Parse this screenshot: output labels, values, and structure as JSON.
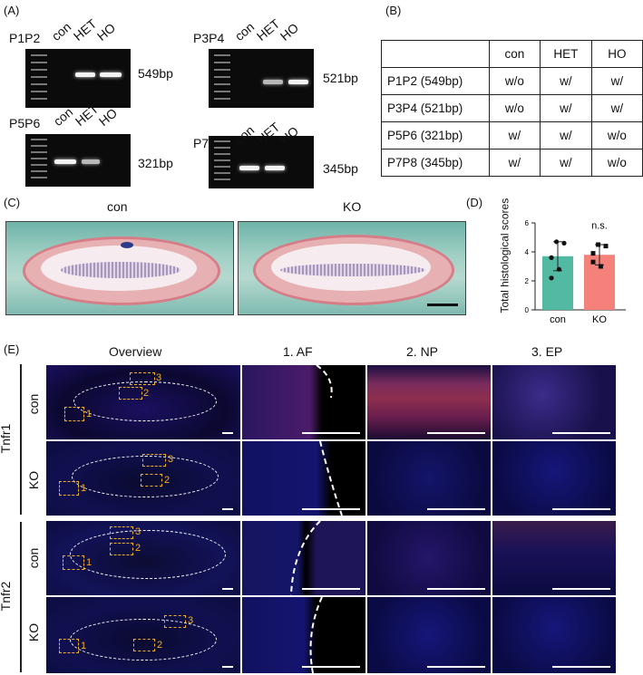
{
  "panelA": {
    "label": "(A)",
    "gels": [
      {
        "name": "P1P2",
        "lanes": [
          "con",
          "HET",
          "HO"
        ],
        "size": "549bp"
      },
      {
        "name": "P3P4",
        "lanes": [
          "con",
          "HET",
          "HO"
        ],
        "size": "521bp"
      },
      {
        "name": "P5P6",
        "lanes": [
          "con",
          "HET",
          "HO"
        ],
        "size": "321bp"
      },
      {
        "name": "P7P8",
        "lanes": [
          "con",
          "HET",
          "HO"
        ],
        "size": "345bp"
      }
    ]
  },
  "panelB": {
    "label": "(B)",
    "headers": [
      "",
      "con",
      "HET",
      "HO"
    ],
    "rows": [
      [
        "P1P2 (549bp)",
        "w/o",
        "w/",
        "w/"
      ],
      [
        "P3P4 (521bp)",
        "w/o",
        "w/",
        "w/"
      ],
      [
        "P5P6 (321bp)",
        "w/",
        "w/",
        "w/o"
      ],
      [
        "P7P8 (345bp)",
        "w/",
        "w/",
        "w/o"
      ]
    ]
  },
  "panelC": {
    "label": "(C)",
    "titles": [
      "con",
      "KO"
    ]
  },
  "panelD": {
    "label": "(D)",
    "chart_data": {
      "type": "bar",
      "categories": [
        "con",
        "KO"
      ],
      "values": [
        3.7,
        3.8
      ],
      "errors": [
        1.0,
        0.7
      ],
      "points": [
        [
          4.7,
          4.6,
          3.6,
          2.8,
          2.2
        ],
        [
          4.5,
          4.4,
          3.9,
          3.0,
          3.3
        ]
      ],
      "colors": [
        "#52b9a3",
        "#f4827a"
      ],
      "ylabel": "Total histological scores",
      "ylim": [
        0,
        6
      ],
      "yticks": [
        "0",
        "2",
        "4",
        "6"
      ],
      "annotation": "n.s."
    }
  },
  "panelE": {
    "label": "(E)",
    "columns": [
      "Overview",
      "1. AF",
      "2. NP",
      "3. EP"
    ],
    "groups": [
      "Tnfr1",
      "Tnfr2"
    ],
    "rows": [
      "con",
      "KO",
      "con",
      "KO"
    ],
    "box_numbers": [
      "1",
      "2",
      "3"
    ]
  }
}
